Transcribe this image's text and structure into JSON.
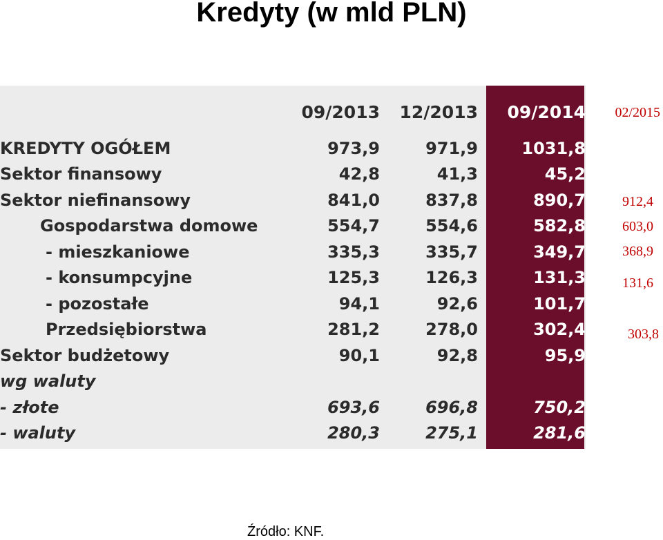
{
  "title": "Kredyty (w mld PLN)",
  "table": {
    "columns": [
      "09/2013",
      "12/2013",
      "09/2014"
    ],
    "rows": [
      {
        "label": "KREDYTY OGÓŁEM",
        "values": [
          "973,9",
          "971,9",
          "1031,8"
        ]
      },
      {
        "label": "Sektor finansowy",
        "values": [
          "42,8",
          "41,3",
          "45,2"
        ]
      },
      {
        "label": "Sektor niefinansowy",
        "values": [
          "841,0",
          "837,8",
          "890,7"
        ]
      },
      {
        "label": "Gospodarstwa domowe",
        "values": [
          "554,7",
          "554,6",
          "582,8"
        ]
      },
      {
        "label": "- mieszkaniowe",
        "values": [
          "335,3",
          "335,7",
          "349,7"
        ]
      },
      {
        "label": "- konsumpcyjne",
        "values": [
          "125,3",
          "126,3",
          "131,3"
        ]
      },
      {
        "label": "- pozostałe",
        "values": [
          "94,1",
          "92,6",
          "101,7"
        ]
      },
      {
        "label": "Przedsiębiorstwa",
        "values": [
          "281,2",
          "278,0",
          "302,4"
        ]
      },
      {
        "label": "Sektor budżetowy",
        "values": [
          "90,1",
          "92,8",
          "95,9"
        ]
      },
      {
        "label": "wg waluty",
        "values": [
          "",
          "",
          ""
        ]
      },
      {
        "label": "- złote",
        "values": [
          "693,6",
          "696,8",
          "750,2"
        ]
      },
      {
        "label": "- waluty",
        "values": [
          "280,3",
          "275,1",
          "281,6"
        ]
      }
    ]
  },
  "extra_column": {
    "header": "02/2015",
    "values": {
      "sektor_niefinansowy": "912,4",
      "gospodarstwa_domowe": "603,0",
      "mieszkaniowe": "368,9",
      "konsumpcyjne": "131,6",
      "przedsiebiorstwa": "303,8"
    }
  },
  "source": "Źródło: KNF.",
  "colors": {
    "panel_background": "#ececec",
    "highlight_column": "#6b0e2c",
    "extra_column_text": "#c00000"
  }
}
